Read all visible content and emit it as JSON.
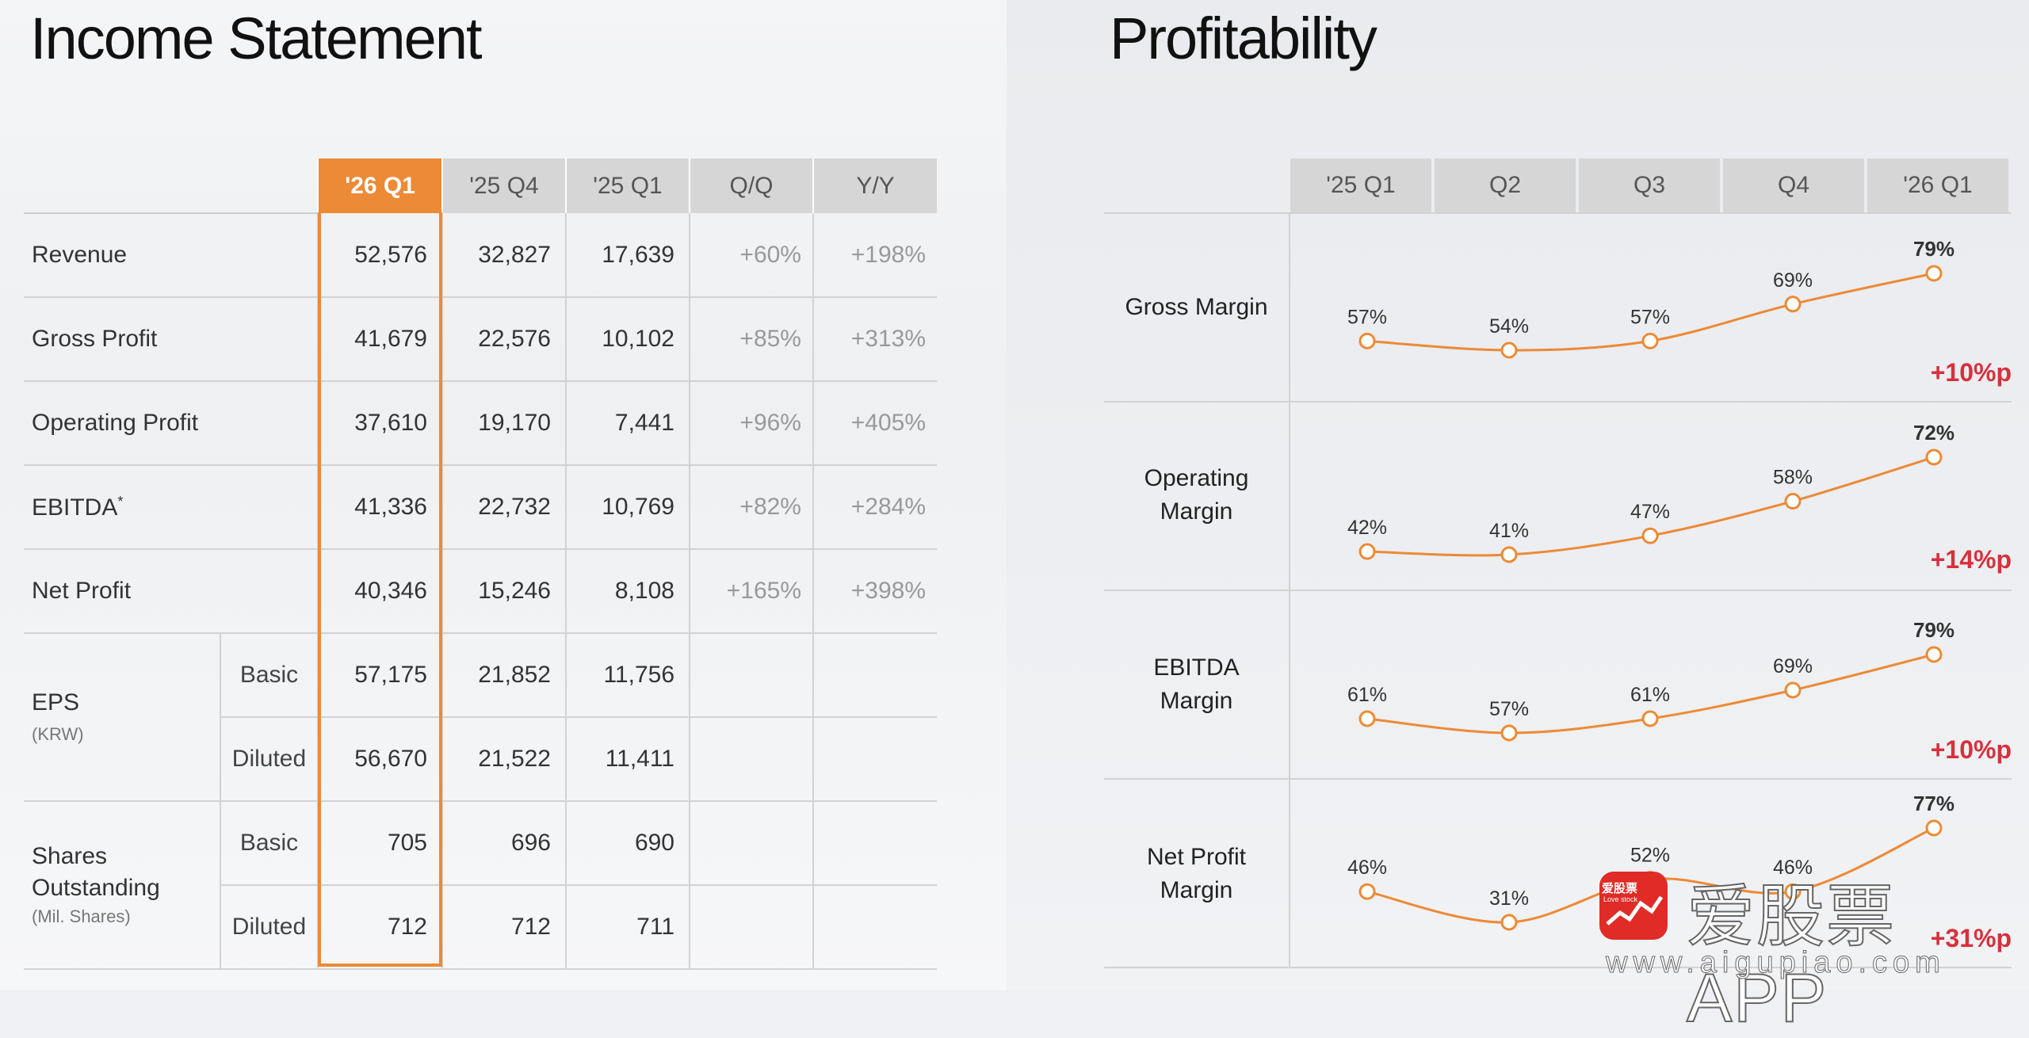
{
  "income": {
    "title": "Income Statement",
    "columns": [
      "'26 Q1",
      "'25 Q4",
      "'25 Q1",
      "Q/Q",
      "Y/Y"
    ],
    "rows": [
      {
        "label": "Revenue",
        "values": [
          "52,576",
          "32,827",
          "17,639"
        ],
        "qq": "+60%",
        "yy": "+198%"
      },
      {
        "label": "Gross Profit",
        "values": [
          "41,679",
          "22,576",
          "10,102"
        ],
        "qq": "+85%",
        "yy": "+313%"
      },
      {
        "label": "Operating Profit",
        "values": [
          "37,610",
          "19,170",
          "7,441"
        ],
        "qq": "+96%",
        "yy": "+405%"
      },
      {
        "label": "EBITDA",
        "label_mark": "*",
        "values": [
          "41,336",
          "22,732",
          "10,769"
        ],
        "qq": "+82%",
        "yy": "+284%"
      },
      {
        "label": "Net Profit",
        "values": [
          "40,346",
          "15,246",
          "8,108"
        ],
        "qq": "+165%",
        "yy": "+398%"
      }
    ],
    "eps": {
      "label": "EPS",
      "unit": "(KRW)",
      "basic": {
        "label": "Basic",
        "values": [
          "57,175",
          "21,852",
          "11,756"
        ]
      },
      "diluted": {
        "label": "Diluted",
        "values": [
          "56,670",
          "21,522",
          "11,411"
        ]
      }
    },
    "shares": {
      "label_line1": "Shares",
      "label_line2": "Outstanding",
      "unit": "(Mil. Shares)",
      "basic": {
        "label": "Basic",
        "values": [
          "705",
          "696",
          "690"
        ]
      },
      "diluted": {
        "label": "Diluted",
        "values": [
          "712",
          "712",
          "711"
        ]
      }
    }
  },
  "profitability": {
    "title": "Profitability",
    "columns": [
      "'25 Q1",
      "Q2",
      "Q3",
      "Q4",
      "'26 Q1"
    ]
  },
  "chart_data": {
    "type": "line",
    "title": "Profitability",
    "categories": [
      "'25 Q1",
      "Q2",
      "Q3",
      "Q4",
      "'26 Q1"
    ],
    "series": [
      {
        "name": "Gross Margin",
        "name_lines": [
          "Gross Margin"
        ],
        "values": [
          57,
          54,
          57,
          69,
          79
        ],
        "labels": [
          "57%",
          "54%",
          "57%",
          "69%",
          "79%"
        ],
        "delta": "+10%p"
      },
      {
        "name": "Operating Margin",
        "name_lines": [
          "Operating",
          "Margin"
        ],
        "values": [
          42,
          41,
          47,
          58,
          72
        ],
        "labels": [
          "42%",
          "41%",
          "47%",
          "58%",
          "72%"
        ],
        "delta": "+14%p"
      },
      {
        "name": "EBITDA Margin",
        "name_lines": [
          "EBITDA",
          "Margin"
        ],
        "values": [
          61,
          57,
          61,
          69,
          79
        ],
        "labels": [
          "61%",
          "57%",
          "61%",
          "69%",
          "79%"
        ],
        "delta": "+10%p"
      },
      {
        "name": "Net Profit Margin",
        "name_lines": [
          "Net Profit",
          "Margin"
        ],
        "values": [
          46,
          31,
          52,
          46,
          77
        ],
        "labels": [
          "46%",
          "31%",
          "52%",
          "46%",
          "77%"
        ],
        "delta": "+31%p"
      }
    ],
    "unit": "%"
  },
  "colors": {
    "accent": "#ec8a36",
    "delta": "#d6313d",
    "header": "#d6d6d6"
  },
  "watermark": {
    "title": "爱股票APP",
    "url": "www.aigupiao.com",
    "logo_cn": "爱股票",
    "logo_en": "Love stock"
  }
}
